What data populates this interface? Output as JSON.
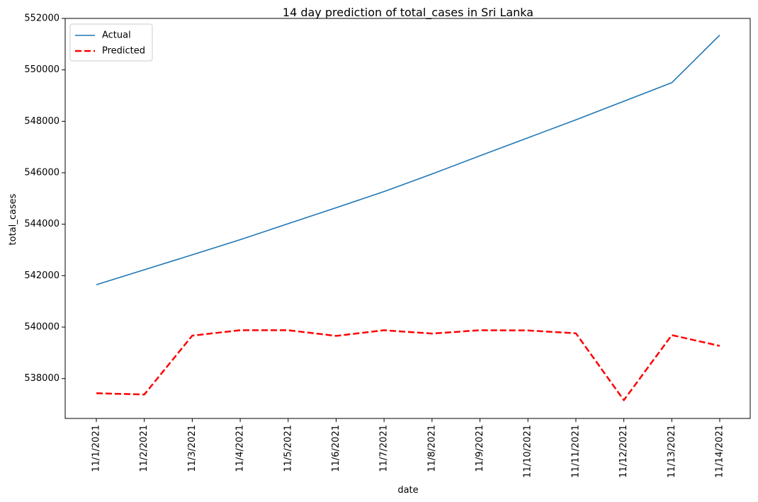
{
  "chart_data": {
    "type": "line",
    "title": "14 day prediction of total_cases in Sri Lanka",
    "xlabel": "date",
    "ylabel": "total_cases",
    "categories": [
      "11/1/2021",
      "11/2/2021",
      "11/3/2021",
      "11/4/2021",
      "11/5/2021",
      "11/6/2021",
      "11/7/2021",
      "11/8/2021",
      "11/9/2021",
      "11/10/2021",
      "11/11/2021",
      "11/12/2021",
      "11/13/2021",
      "11/14/2021"
    ],
    "yticks": [
      538000,
      540000,
      542000,
      544000,
      546000,
      548000,
      550000,
      552000
    ],
    "ylim": [
      536450,
      552000
    ],
    "grid": false,
    "legend_position": "top-left",
    "series": [
      {
        "name": "Actual",
        "color": "#1f77b4",
        "style": "solid",
        "values": [
          541650,
          542230,
          542810,
          543400,
          544020,
          544640,
          545270,
          545950,
          546660,
          547360,
          548060,
          548780,
          549500,
          551350
        ]
      },
      {
        "name": "Predicted",
        "color": "#ff0000",
        "style": "dashed",
        "values": [
          537430,
          537380,
          539670,
          539880,
          539880,
          539660,
          539880,
          539750,
          539880,
          539870,
          539760,
          537160,
          539690,
          539270
        ]
      }
    ]
  }
}
